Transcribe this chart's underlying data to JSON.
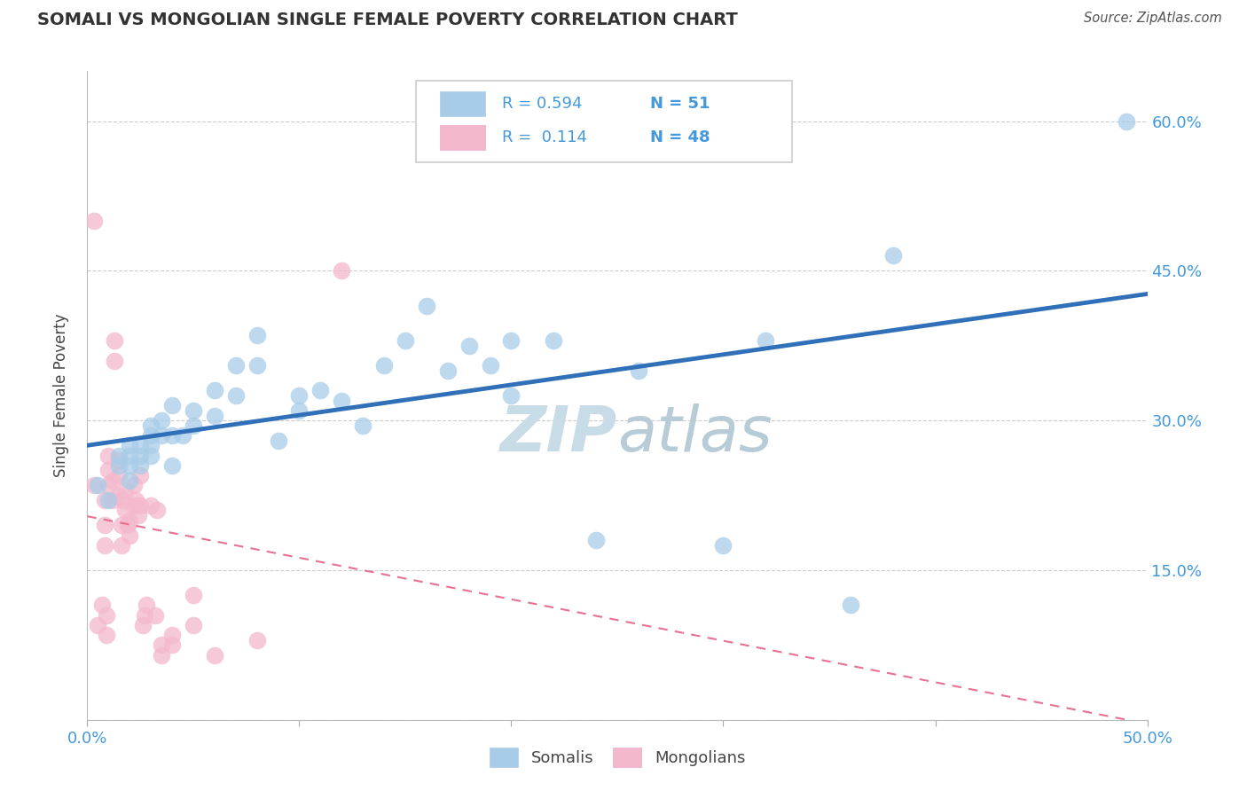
{
  "title": "SOMALI VS MONGOLIAN SINGLE FEMALE POVERTY CORRELATION CHART",
  "source": "Source: ZipAtlas.com",
  "ylabel": "Single Female Poverty",
  "xlim": [
    0.0,
    0.5
  ],
  "ylim": [
    0.0,
    0.65
  ],
  "xtick_positions": [
    0.0,
    0.1,
    0.2,
    0.3,
    0.4,
    0.5
  ],
  "xticklabels": [
    "0.0%",
    "",
    "",
    "",
    "",
    "50.0%"
  ],
  "ytick_positions": [
    0.0,
    0.15,
    0.3,
    0.45,
    0.6
  ],
  "yticklabels_right": [
    "",
    "15.0%",
    "30.0%",
    "45.0%",
    "60.0%"
  ],
  "somali_R": 0.594,
  "somali_N": 51,
  "mongolian_R": 0.114,
  "mongolian_N": 48,
  "somali_color": "#a8cce8",
  "mongolian_color": "#f4b8cc",
  "somali_line_color": "#3070b8",
  "mongolian_line_color": "#e87090",
  "grid_color": "#cccccc",
  "title_color": "#333333",
  "axis_label_color": "#444444",
  "tick_label_color": "#4499dd",
  "legend_text_color": "#333333",
  "legend_R_color": "#4499dd",
  "watermark_color": "#d8e8f0",
  "somali_x": [
    0.005,
    0.01,
    0.015,
    0.015,
    0.02,
    0.02,
    0.02,
    0.02,
    0.025,
    0.025,
    0.025,
    0.03,
    0.03,
    0.03,
    0.03,
    0.035,
    0.035,
    0.04,
    0.04,
    0.04,
    0.045,
    0.05,
    0.05,
    0.06,
    0.06,
    0.07,
    0.07,
    0.08,
    0.08,
    0.09,
    0.1,
    0.1,
    0.11,
    0.12,
    0.13,
    0.14,
    0.15,
    0.16,
    0.17,
    0.18,
    0.19,
    0.2,
    0.2,
    0.22,
    0.24,
    0.26,
    0.3,
    0.32,
    0.36,
    0.38,
    0.49
  ],
  "somali_y": [
    0.235,
    0.22,
    0.265,
    0.255,
    0.255,
    0.265,
    0.275,
    0.24,
    0.265,
    0.275,
    0.255,
    0.275,
    0.285,
    0.295,
    0.265,
    0.3,
    0.285,
    0.315,
    0.285,
    0.255,
    0.285,
    0.31,
    0.295,
    0.33,
    0.305,
    0.325,
    0.355,
    0.355,
    0.385,
    0.28,
    0.325,
    0.31,
    0.33,
    0.32,
    0.295,
    0.355,
    0.38,
    0.415,
    0.35,
    0.375,
    0.355,
    0.38,
    0.325,
    0.38,
    0.18,
    0.35,
    0.175,
    0.38,
    0.115,
    0.465,
    0.6
  ],
  "mongolian_x": [
    0.003,
    0.003,
    0.005,
    0.007,
    0.008,
    0.008,
    0.008,
    0.009,
    0.009,
    0.01,
    0.01,
    0.01,
    0.012,
    0.012,
    0.013,
    0.013,
    0.015,
    0.015,
    0.015,
    0.016,
    0.016,
    0.017,
    0.018,
    0.018,
    0.019,
    0.02,
    0.02,
    0.022,
    0.022,
    0.023,
    0.024,
    0.025,
    0.025,
    0.026,
    0.027,
    0.028,
    0.03,
    0.032,
    0.033,
    0.035,
    0.035,
    0.04,
    0.04,
    0.05,
    0.05,
    0.06,
    0.08,
    0.12
  ],
  "mongolian_y": [
    0.5,
    0.235,
    0.095,
    0.115,
    0.22,
    0.195,
    0.175,
    0.105,
    0.085,
    0.265,
    0.25,
    0.235,
    0.24,
    0.22,
    0.38,
    0.36,
    0.26,
    0.245,
    0.225,
    0.195,
    0.175,
    0.22,
    0.23,
    0.21,
    0.195,
    0.2,
    0.185,
    0.235,
    0.215,
    0.22,
    0.205,
    0.245,
    0.215,
    0.095,
    0.105,
    0.115,
    0.215,
    0.105,
    0.21,
    0.065,
    0.075,
    0.075,
    0.085,
    0.125,
    0.095,
    0.065,
    0.08,
    0.45
  ]
}
